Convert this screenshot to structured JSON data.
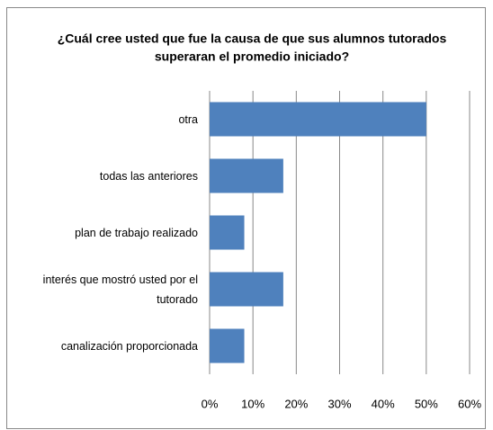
{
  "chart_data": {
    "type": "bar",
    "orientation": "horizontal",
    "title": [
      "¿Cuál  cree usted que fue la causa de que sus alumnos tutorados",
      "superaran el promedio iniciado?"
    ],
    "categories": [
      "otra",
      "todas las anteriores",
      "plan de trabajo realizado",
      "interés que mostró usted por el tutorado",
      "canalización proporcionada"
    ],
    "values": [
      50,
      17,
      8,
      17,
      8
    ],
    "color": "#4f81bd",
    "xlim": [
      0,
      60
    ],
    "xticks": [
      {
        "value": 0,
        "label": "0%"
      },
      {
        "value": 10,
        "label": "10%"
      },
      {
        "value": 20,
        "label": "20%"
      },
      {
        "value": 30,
        "label": "30%"
      },
      {
        "value": 40,
        "label": "40%"
      },
      {
        "value": 50,
        "label": "50%"
      },
      {
        "value": 60,
        "label": "60%"
      }
    ],
    "grid": true
  }
}
